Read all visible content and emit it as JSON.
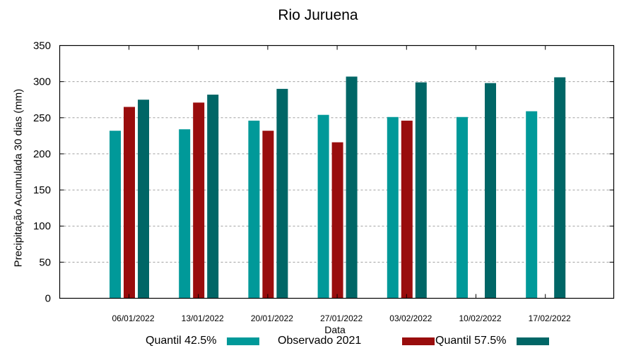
{
  "chart_data": {
    "type": "bar",
    "title": "Rio Juruena",
    "xlabel": "Data",
    "ylabel": "Precipitação Acumulada 30 dias (mm)",
    "ylim": [
      0,
      350
    ],
    "yticks": [
      0,
      50,
      100,
      150,
      200,
      250,
      300,
      350
    ],
    "grid": true,
    "legend_position": "bottom",
    "categories": [
      "06/01/2022",
      "13/01/2022",
      "20/01/2022",
      "27/01/2022",
      "03/02/2022",
      "10/02/2022",
      "17/02/2022"
    ],
    "series": [
      {
        "name": "Quantil 42.5%",
        "color": "#009999",
        "values": [
          232,
          234,
          246,
          254,
          251,
          251,
          259
        ]
      },
      {
        "name": "Observado 2021",
        "color": "#990d0d",
        "values": [
          265,
          271,
          232,
          216,
          246,
          null,
          null
        ]
      },
      {
        "name": "Quantil 57.5%",
        "color": "#006666",
        "values": [
          275,
          282,
          290,
          307,
          299,
          298,
          306
        ]
      }
    ]
  }
}
